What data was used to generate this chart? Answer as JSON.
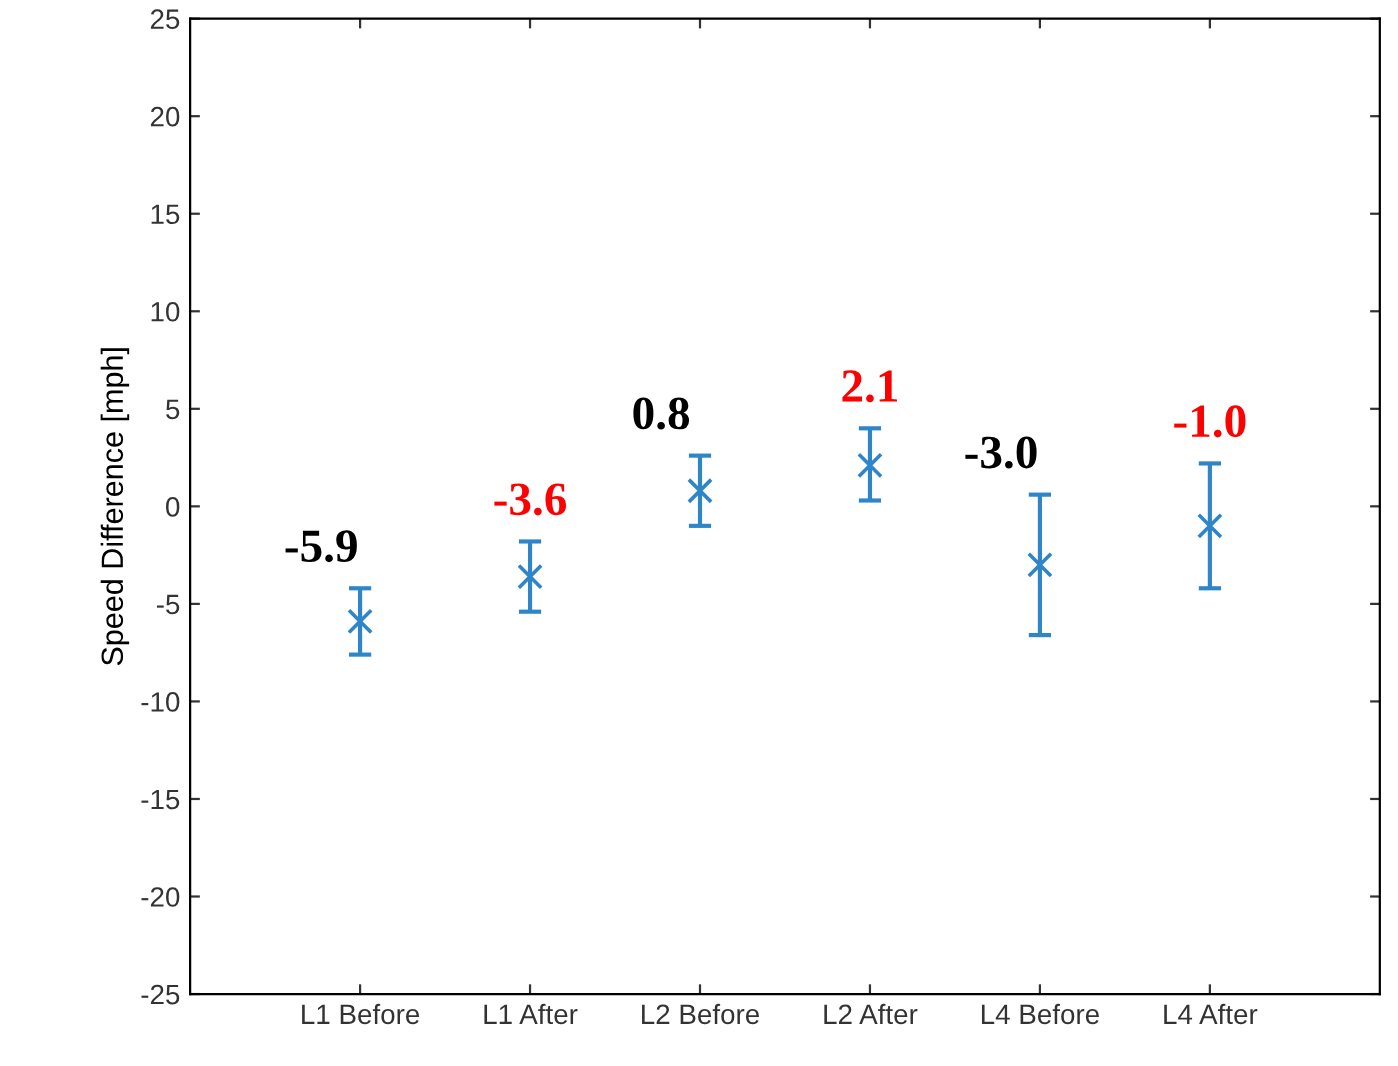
{
  "chart_data": {
    "type": "scatter",
    "ylabel": "Speed Difference [mph]",
    "categories": [
      "L1 Before",
      "L1 After",
      "L2 Before",
      "L2 After",
      "L4 Before",
      "L4 After"
    ],
    "values": [
      -5.9,
      -3.6,
      0.8,
      2.1,
      -3.0,
      -1.0
    ],
    "errors": [
      [
        -7.6,
        -4.2
      ],
      [
        -5.4,
        -1.8
      ],
      [
        -1.0,
        2.6
      ],
      [
        0.3,
        4.0
      ],
      [
        -6.6,
        0.6
      ],
      [
        -4.2,
        2.2
      ]
    ],
    "color": "#2e86c8",
    "marker": "cross",
    "value_labels": [
      "-5.9",
      "-3.6",
      "0.8",
      "2.1",
      "-3.0",
      "-1.0"
    ],
    "ylim": [
      -25,
      25
    ],
    "yticks": [
      -25,
      -20,
      -15,
      -10,
      -5,
      0,
      5,
      10,
      15,
      20,
      25
    ],
    "grid": false,
    "legend": false
  }
}
